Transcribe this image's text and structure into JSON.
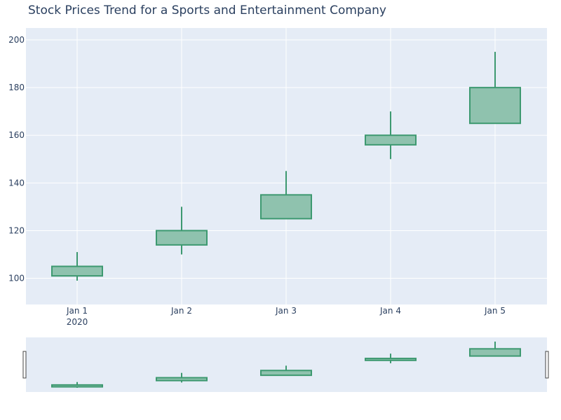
{
  "chart_data": {
    "type": "candlestick",
    "title": "Stock Prices Trend for a Sports and Entertainment Company",
    "x": [
      "Jan 1",
      "Jan 2",
      "Jan 3",
      "Jan 4",
      "Jan 5"
    ],
    "x_year_label": "2020",
    "series": [
      {
        "open": [
          101,
          114,
          125,
          156,
          165
        ],
        "high": [
          111,
          130,
          145,
          170,
          195
        ],
        "low": [
          99,
          110,
          125,
          150,
          165
        ],
        "close": [
          105,
          120,
          135,
          160,
          180
        ]
      }
    ],
    "ylim": [
      89,
      205
    ],
    "yticks": [
      100,
      120,
      140,
      160,
      180,
      200
    ],
    "grid": true,
    "legend": "none",
    "rangeslider": true,
    "colors": {
      "increasing_line": "#3d9970",
      "increasing_fill": "#8fc2ae",
      "plot_bg": "#e5ecf6",
      "grid": "#ffffff",
      "text": "#2a3f5f"
    }
  }
}
